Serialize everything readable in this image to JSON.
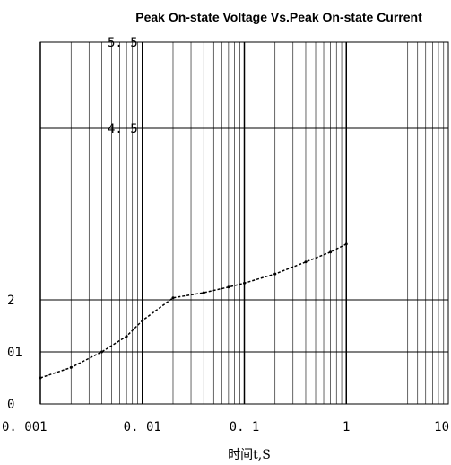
{
  "chart_data": {
    "type": "line",
    "title": "Peak On-state Voltage Vs.Peak On-state Current",
    "xlabel": "时间t,S",
    "ylabel": "",
    "x_scale": "log",
    "xlim": [
      0.001,
      10
    ],
    "x_ticks": [
      {
        "value": 0.001,
        "label": "0. 001"
      },
      {
        "value": 0.01,
        "label": "0. 01"
      },
      {
        "value": 0.1,
        "label": "0. 1"
      },
      {
        "value": 1,
        "label": "1"
      },
      {
        "value": 10,
        "label": "10"
      }
    ],
    "y_ticks": [
      {
        "value": 0,
        "label": "0"
      },
      {
        "value": 0.1,
        "label": "01"
      },
      {
        "value": 0.2,
        "label": "2"
      },
      {
        "value": 4.5,
        "label": "4. 5"
      },
      {
        "value": 5.5,
        "label": "5. 5"
      }
    ],
    "grid": true,
    "series": [
      {
        "x": [
          0.001,
          0.002,
          0.004,
          0.007,
          0.01,
          0.02,
          0.04,
          0.07,
          0.1,
          0.2,
          0.4,
          0.7,
          1
        ],
        "values": [
          0.05,
          0.07,
          0.1,
          0.13,
          0.16,
          0.25,
          0.38,
          0.52,
          0.62,
          0.85,
          1.15,
          1.4,
          1.6
        ]
      }
    ]
  },
  "colors": {
    "line": "#000000",
    "grid": "#000000",
    "background": "#ffffff"
  }
}
